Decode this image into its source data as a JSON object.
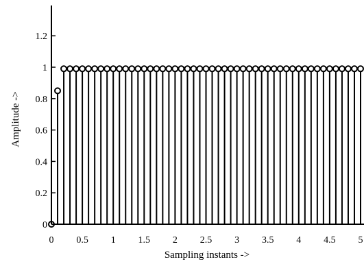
{
  "chart_data": {
    "type": "stem",
    "xlabel": "Sampling instants ->",
    "ylabel": "Amplitude ->",
    "xlim": [
      0,
      5
    ],
    "ylim": [
      0,
      1.4
    ],
    "xticks": [
      {
        "value": 0,
        "label": "0"
      },
      {
        "value": 0.5,
        "label": "0.5"
      },
      {
        "value": 1,
        "label": "1"
      },
      {
        "value": 1.5,
        "label": "1.5"
      },
      {
        "value": 2,
        "label": "2"
      },
      {
        "value": 2.5,
        "label": "2.5"
      },
      {
        "value": 3,
        "label": "3"
      },
      {
        "value": 3.5,
        "label": "3.5"
      },
      {
        "value": 4,
        "label": "4"
      },
      {
        "value": 4.5,
        "label": "4.5"
      },
      {
        "value": 5,
        "label": "5"
      }
    ],
    "yticks": [
      {
        "value": 0,
        "label": "0"
      },
      {
        "value": 0.2,
        "label": "0.2"
      },
      {
        "value": 0.4,
        "label": "0.4"
      },
      {
        "value": 0.6,
        "label": "0.6"
      },
      {
        "value": 0.8,
        "label": "0.8"
      },
      {
        "value": 1,
        "label": "1"
      },
      {
        "value": 1.2,
        "label": "1.2"
      }
    ],
    "grid": false,
    "x": [
      0,
      0.1,
      0.2,
      0.3,
      0.4,
      0.5,
      0.6,
      0.7,
      0.8,
      0.9,
      1.0,
      1.1,
      1.2,
      1.3,
      1.4,
      1.5,
      1.6,
      1.7,
      1.8,
      1.9,
      2.0,
      2.1,
      2.2,
      2.3,
      2.4,
      2.5,
      2.6,
      2.7,
      2.8,
      2.9,
      3.0,
      3.1,
      3.2,
      3.3,
      3.4,
      3.5,
      3.6,
      3.7,
      3.8,
      3.9,
      4.0,
      4.1,
      4.2,
      4.3,
      4.4,
      4.5,
      4.6,
      4.7,
      4.8,
      4.9,
      5.0
    ],
    "y": [
      0,
      0.85,
      0.99,
      0.99,
      0.99,
      0.99,
      0.99,
      0.99,
      0.99,
      0.99,
      0.99,
      0.99,
      0.99,
      0.99,
      0.99,
      0.99,
      0.99,
      0.99,
      0.99,
      0.99,
      0.99,
      0.99,
      0.99,
      0.99,
      0.99,
      0.99,
      0.99,
      0.99,
      0.99,
      0.99,
      0.99,
      0.99,
      0.99,
      0.99,
      0.99,
      0.99,
      0.99,
      0.99,
      0.99,
      0.99,
      0.99,
      0.99,
      0.99,
      0.99,
      0.99,
      0.99,
      0.99,
      0.99,
      0.99,
      0.99,
      0.99
    ]
  }
}
